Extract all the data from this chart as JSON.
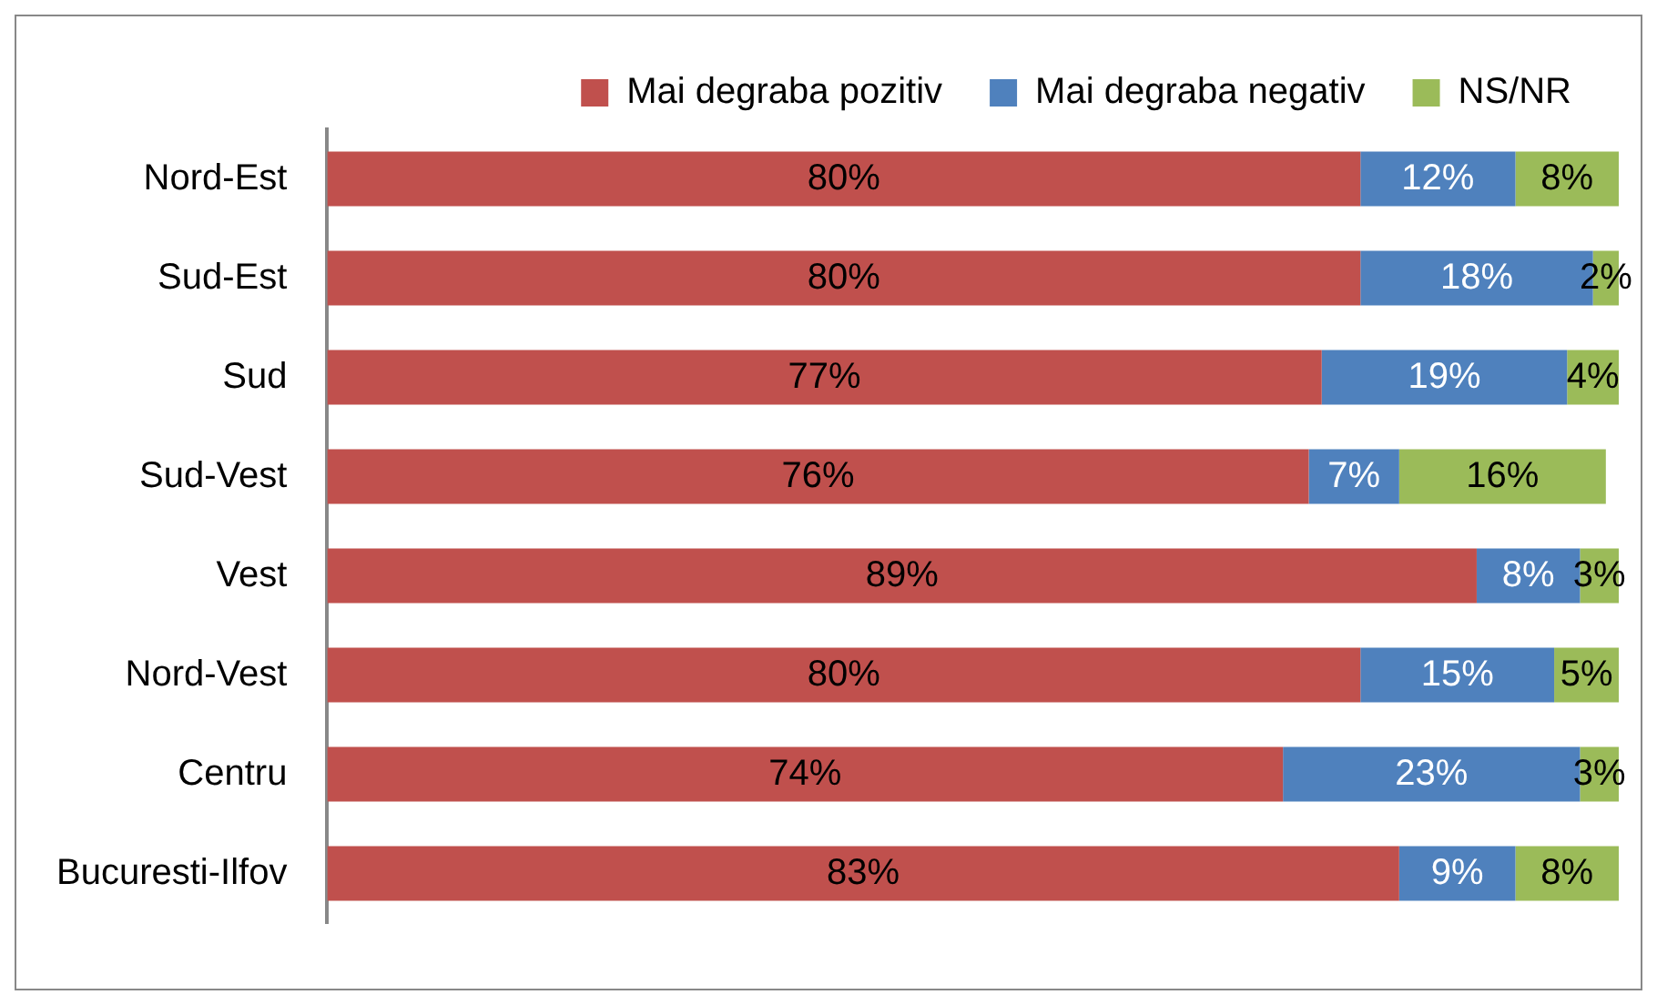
{
  "chart_data": {
    "type": "bar",
    "orientation": "horizontal",
    "stacked": true,
    "categories": [
      "Nord-Est",
      "Sud-Est",
      "Sud",
      "Sud-Vest",
      "Vest",
      "Nord-Vest",
      "Centru",
      "Bucuresti-Ilfov"
    ],
    "series": [
      {
        "name": "Mai degraba pozitiv",
        "color": "#c0504d",
        "values": [
          80,
          80,
          77,
          76,
          89,
          80,
          74,
          83
        ],
        "value_labels": [
          "80%",
          "80%",
          "77%",
          "76%",
          "89%",
          "80%",
          "74%",
          "83%"
        ]
      },
      {
        "name": "Mai degraba negativ",
        "color": "#4f81bd",
        "values": [
          12,
          18,
          19,
          7,
          8,
          15,
          23,
          9
        ],
        "value_labels": [
          "12%",
          "18%",
          "19%",
          "7%",
          "8%",
          "15%",
          "23%",
          "9%"
        ]
      },
      {
        "name": "NS/NR",
        "color": "#9bbb59",
        "values": [
          8,
          2,
          4,
          16,
          3,
          5,
          3,
          8
        ],
        "value_labels": [
          "8%",
          "2%",
          "4%",
          "16%",
          "3%",
          "5%",
          "3%",
          "8%"
        ]
      }
    ],
    "tick_labels": "y",
    "legend": "top right"
  }
}
